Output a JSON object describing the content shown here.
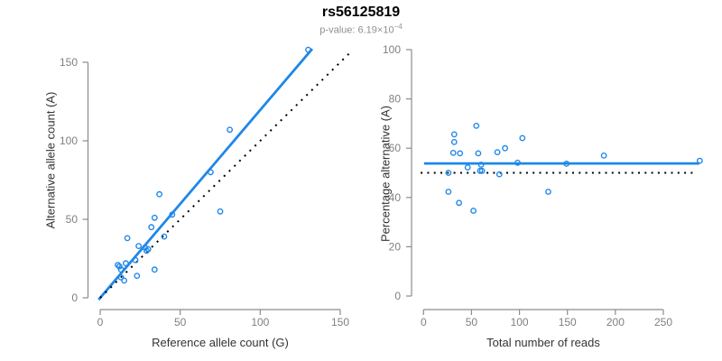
{
  "figure": {
    "title": "rs56125819",
    "subtitle_prefix": "p-value: 6.19×10",
    "subtitle_exponent": "−4"
  },
  "colors": {
    "accent_blue": "#1f87e8",
    "dotted_black": "#000000",
    "axis": "#8c8c8c",
    "tick_label": "#808080",
    "axis_title": "#333333",
    "title_text": "#000000",
    "subtitle_text": "#8f8f8f",
    "background": "#ffffff"
  },
  "chart_data": [
    {
      "type": "scatter",
      "panel": "left",
      "xlabel": "Reference allele count (G)",
      "ylabel": "Alternative allele count (A)",
      "xlim": [
        0,
        155
      ],
      "ylim": [
        0,
        160
      ],
      "x_ticks": [
        0,
        50,
        100,
        150
      ],
      "y_ticks": [
        0,
        50,
        100,
        150
      ],
      "grid": false,
      "legend": null,
      "points": [
        [
          130,
          158
        ],
        [
          81,
          107
        ],
        [
          69,
          80
        ],
        [
          37,
          66
        ],
        [
          75,
          55
        ],
        [
          45,
          53
        ],
        [
          34,
          51
        ],
        [
          32,
          45
        ],
        [
          40,
          39
        ],
        [
          17,
          38
        ],
        [
          24,
          33
        ],
        [
          28,
          32
        ],
        [
          30,
          31
        ],
        [
          29,
          30
        ],
        [
          22,
          24
        ],
        [
          16,
          22
        ],
        [
          11,
          21
        ],
        [
          12,
          20
        ],
        [
          13,
          18
        ],
        [
          34,
          18
        ],
        [
          23,
          14
        ],
        [
          13,
          13
        ],
        [
          15,
          11
        ]
      ],
      "lines": [
        {
          "name": "regression-line",
          "style": "solid",
          "color": "#1f87e8",
          "width": 2.8,
          "x": [
            -1,
            132.5
          ],
          "y": [
            -1.2,
            158.5
          ]
        },
        {
          "name": "identity-line",
          "style": "dotted",
          "color": "#000000",
          "width": 2,
          "x": [
            0,
            156
          ],
          "y": [
            0,
            156
          ],
          "dash": "2,6"
        }
      ]
    },
    {
      "type": "scatter",
      "panel": "right",
      "xlabel": "Total number of reads",
      "ylabel": "Percentage alternative (A)",
      "xlim": [
        0,
        288
      ],
      "ylim": [
        0,
        100
      ],
      "x_ticks": [
        0,
        50,
        100,
        150,
        200,
        250
      ],
      "y_ticks": [
        0,
        20,
        40,
        60,
        80,
        100
      ],
      "grid": false,
      "legend": null,
      "points": [
        [
          288,
          54.9
        ],
        [
          188,
          57
        ],
        [
          149,
          53.7
        ],
        [
          103,
          64.1
        ],
        [
          130,
          42.3
        ],
        [
          98,
          54.1
        ],
        [
          85,
          60
        ],
        [
          77,
          58.4
        ],
        [
          79,
          49.4
        ],
        [
          55,
          69.1
        ],
        [
          57,
          57.9
        ],
        [
          60,
          53.3
        ],
        [
          61,
          50.8
        ],
        [
          59,
          50.8
        ],
        [
          46,
          52.2
        ],
        [
          38,
          57.9
        ],
        [
          32,
          65.6
        ],
        [
          32,
          62.5
        ],
        [
          31,
          58.1
        ],
        [
          52,
          34.6
        ],
        [
          37,
          37.8
        ],
        [
          26,
          50
        ],
        [
          26,
          42.3
        ]
      ],
      "lines": [
        {
          "name": "mean-line",
          "style": "solid",
          "color": "#1f87e8",
          "width": 2.8,
          "x": [
            0.5,
            287.5
          ],
          "y": [
            53.8,
            53.8
          ]
        },
        {
          "name": "reference-line",
          "style": "dotted",
          "color": "#000000",
          "width": 2,
          "x": [
            -3,
            283
          ],
          "y": [
            50,
            50
          ],
          "dash": "2,5.3"
        }
      ]
    }
  ]
}
